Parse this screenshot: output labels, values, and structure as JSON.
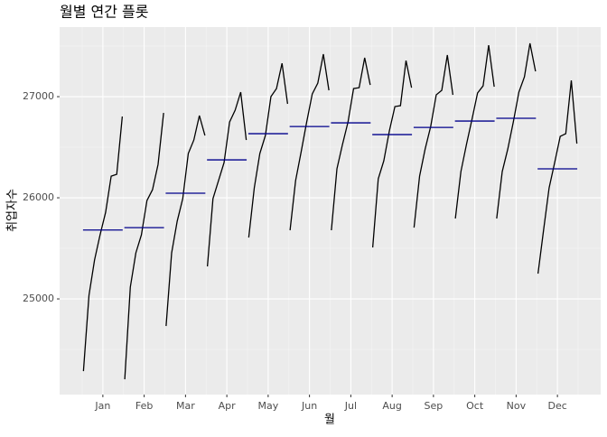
{
  "chart_data": {
    "type": "subseries",
    "title": "월별 연간 플롯",
    "xlabel": "월",
    "ylabel": "취업자수",
    "categories": [
      "Jan",
      "Feb",
      "Mar",
      "Apr",
      "May",
      "Jun",
      "Jul",
      "Aug",
      "Sep",
      "Oct",
      "Nov",
      "Dec"
    ],
    "values": [
      [
        24286,
        25036,
        25384,
        25634,
        25857,
        26214,
        26232,
        26804
      ],
      [
        24205,
        25116,
        25455,
        25634,
        25973,
        26080,
        26330,
        26839
      ],
      [
        24732,
        25455,
        25768,
        25991,
        26438,
        26571,
        26813,
        26616
      ],
      [
        25321,
        25991,
        26170,
        26348,
        26750,
        26866,
        27045,
        26571
      ],
      [
        25607,
        26098,
        26438,
        26616,
        27000,
        27080,
        27330,
        26929
      ],
      [
        25679,
        26170,
        26455,
        26750,
        27027,
        27134,
        27420,
        27063
      ],
      [
        25679,
        26286,
        26527,
        26750,
        27080,
        27089,
        27384,
        27116
      ],
      [
        25509,
        26188,
        26366,
        26661,
        26902,
        26911,
        27357,
        27089
      ],
      [
        25705,
        26214,
        26482,
        26705,
        27018,
        27063,
        27411,
        27018
      ],
      [
        25795,
        26259,
        26527,
        26777,
        27036,
        27107,
        27509,
        27098
      ],
      [
        25795,
        26259,
        26482,
        26750,
        27045,
        27196,
        27527,
        27250
      ],
      [
        25250,
        25679,
        26098,
        26348,
        26607,
        26634,
        27161,
        26536
      ]
    ],
    "means": [
      25681,
      25705,
      26045,
      26375,
      26634,
      26705,
      26741,
      26625,
      26696,
      26759,
      26786,
      26286
    ],
    "color": "#000000",
    "mean_color": "#00008b",
    "ylim": [
      24054,
      27688
    ],
    "yticks": [
      25000,
      26000,
      27000
    ],
    "yminorticks": [
      24500,
      25500,
      26500,
      27500
    ],
    "grid": true
  }
}
